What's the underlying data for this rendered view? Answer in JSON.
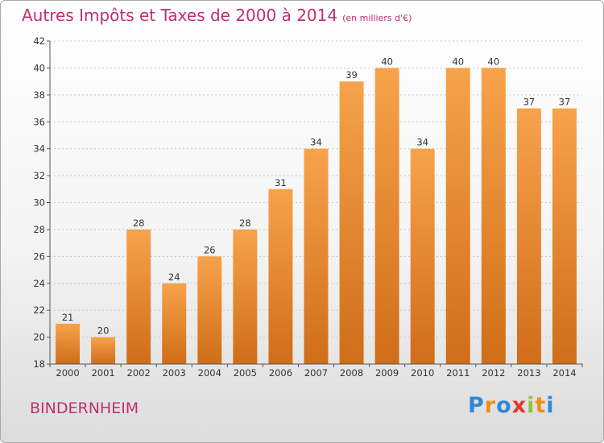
{
  "header": {
    "title": "Autres Impôts et Taxes de 2000 à 2014",
    "subtitle": "(en milliers d'€)"
  },
  "footer": {
    "town": "BINDERNHEIM",
    "logo_letters": [
      "P",
      "r",
      "o",
      "x",
      "i",
      "t",
      "i"
    ],
    "logo_colors": [
      "#2e88d6",
      "#f08c1a",
      "#2e88d6",
      "#e8352a",
      "#8cc63e",
      "#f08c1a",
      "#2e88d6"
    ]
  },
  "colors": {
    "bar_top": "#f7a34b",
    "bar_bottom": "#d06d18",
    "title": "#c0306a",
    "grid": "#c8c8c8"
  },
  "chart_data": {
    "type": "bar",
    "title": "Autres Impôts et Taxes de 2000 à 2014",
    "subtitle": "(en milliers d'€)",
    "categories": [
      "2000",
      "2001",
      "2002",
      "2003",
      "2004",
      "2005",
      "2006",
      "2007",
      "2008",
      "2009",
      "2010",
      "2011",
      "2012",
      "2013",
      "2014"
    ],
    "values": [
      21,
      20,
      28,
      24,
      26,
      28,
      31,
      34,
      39,
      40,
      34,
      40,
      40,
      37,
      37
    ],
    "ylim": [
      18,
      42
    ],
    "yticks": [
      18,
      20,
      22,
      24,
      26,
      28,
      30,
      32,
      34,
      36,
      38,
      40,
      42
    ],
    "grid": true,
    "data_labels": true
  }
}
